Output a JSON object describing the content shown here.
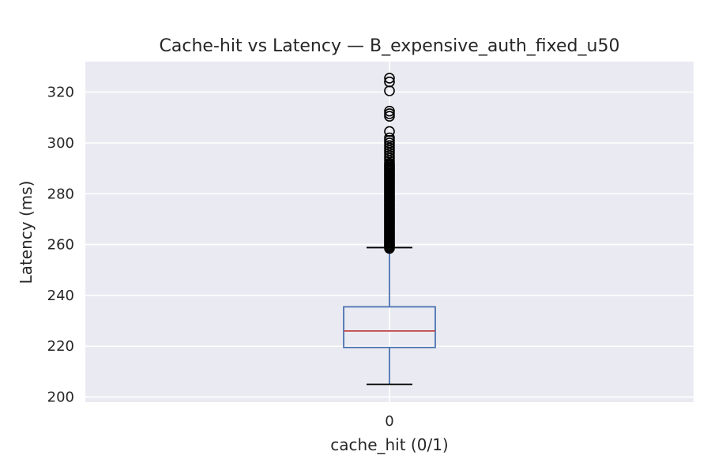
{
  "chart_data": {
    "type": "box",
    "title": "Cache-hit vs Latency — B_expensive_auth_fixed_u50",
    "xlabel": "cache_hit (0/1)",
    "ylabel": "Latency (ms)",
    "categories": [
      "0"
    ],
    "ylim": [
      198,
      332
    ],
    "yticks": [
      200,
      220,
      240,
      260,
      280,
      300,
      320
    ],
    "grid": true,
    "boxes": [
      {
        "category": "0",
        "whisker_low": 205,
        "q1": 219.5,
        "median": 226,
        "q3": 235.5,
        "whisker_high": 258.8,
        "outliers": [
          258.5,
          259,
          259.5,
          260,
          260.5,
          261,
          261.5,
          262,
          262.5,
          263,
          263.5,
          264,
          264.5,
          265,
          265.5,
          266,
          266.5,
          267,
          267.5,
          268,
          268.5,
          269,
          269.5,
          270,
          270.5,
          271,
          271.5,
          272,
          272.5,
          273,
          273.5,
          274,
          274.5,
          275,
          275.5,
          276,
          276.5,
          277,
          277.5,
          278,
          278.5,
          279,
          279.5,
          280,
          280.5,
          281,
          281.5,
          282,
          282.5,
          283,
          283.5,
          284,
          284.5,
          285,
          285.5,
          286,
          286.5,
          287,
          287.5,
          288,
          288.5,
          289,
          289.5,
          290,
          290.5,
          291,
          291.5,
          292,
          293,
          294,
          295,
          296,
          297,
          298,
          299,
          300,
          301,
          302,
          304.5,
          310.5,
          311.5,
          312.5,
          320.5,
          324,
          325.5
        ]
      }
    ],
    "colors": {
      "box": "#4c72b0",
      "median": "#c44e52",
      "caps": "#000000",
      "fliers": "#000000",
      "background": "#eaeaf2",
      "grid": "#ffffff"
    }
  }
}
